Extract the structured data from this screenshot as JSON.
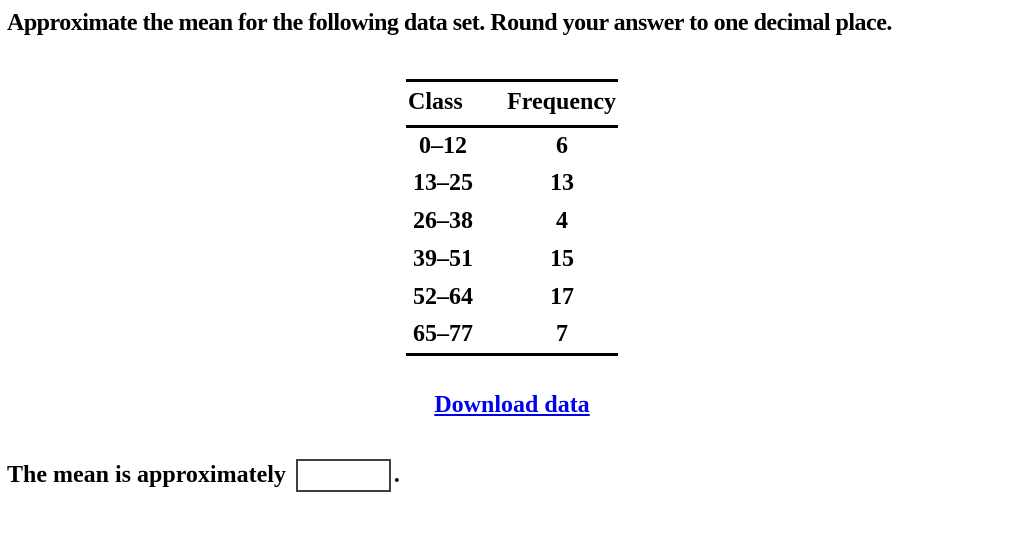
{
  "page": {
    "title": "Approximate the mean for the following data set. Round your answer to one decimal place.",
    "background_color": "#ffffff",
    "text_color": "#000000"
  },
  "table": {
    "headers": [
      "Class",
      "Frequency"
    ],
    "rows": [
      {
        "class": "0–12",
        "frequency": "6"
      },
      {
        "class": "13–25",
        "frequency": "13"
      },
      {
        "class": "26–38",
        "frequency": "4"
      },
      {
        "class": "39–51",
        "frequency": "15"
      },
      {
        "class": "52–64",
        "frequency": "17"
      },
      {
        "class": "65–77",
        "frequency": "7"
      }
    ]
  },
  "chart_data": {
    "type": "table",
    "columns": [
      "Class",
      "Frequency"
    ],
    "classes": [
      "0–12",
      "13–25",
      "26–38",
      "39–51",
      "52–64",
      "65–77"
    ],
    "frequencies": [
      6,
      13,
      4,
      15,
      17,
      7
    ]
  },
  "download": {
    "label": "Download data",
    "link_color": "#0000EE"
  },
  "answer": {
    "prompt": "The mean is approximately",
    "value": "",
    "suffix": "."
  }
}
